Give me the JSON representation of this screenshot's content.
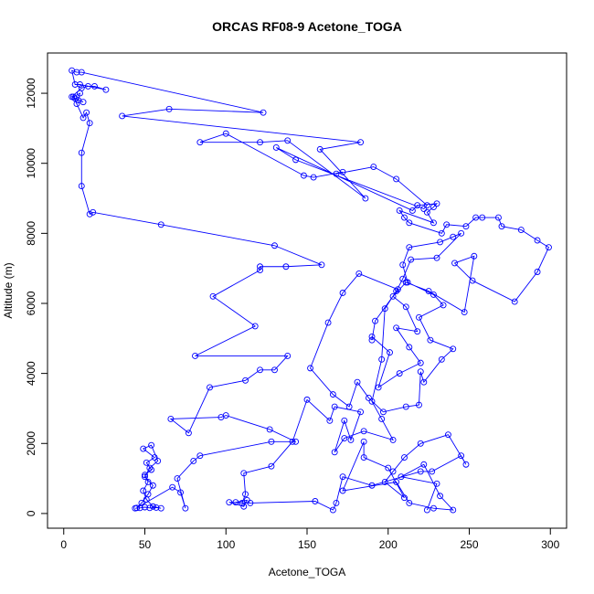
{
  "chart_data": {
    "type": "line",
    "title": "ORCAS RF08-9 Acetone_TOGA",
    "x_label": "Acetone_TOGA",
    "y_label": "Altitude (m)",
    "color": "#0000ff",
    "markers": "open-circle",
    "xlim": [
      -10,
      310
    ],
    "ylim": [
      -420,
      13150
    ],
    "xticks": [
      0,
      50,
      100,
      150,
      200,
      250,
      300
    ],
    "yticks": [
      0,
      2000,
      4000,
      6000,
      8000,
      10000,
      12000
    ],
    "x": [
      44,
      47,
      50,
      53,
      57,
      60,
      55,
      51,
      49,
      52,
      50,
      54,
      51,
      56,
      49,
      54,
      58,
      53,
      50,
      55,
      52,
      48,
      45,
      67,
      72,
      75,
      70,
      80,
      84,
      128,
      143,
      127,
      100,
      97,
      66,
      77,
      90,
      112,
      121,
      130,
      138,
      81,
      118,
      92,
      121,
      121,
      137,
      159,
      130,
      60,
      18,
      16,
      11,
      11,
      16,
      14,
      12,
      8,
      6,
      10,
      9,
      12,
      7,
      5,
      11,
      15,
      19,
      26,
      10,
      7,
      5,
      8,
      11,
      123,
      65,
      36,
      183,
      158,
      186,
      138,
      121,
      84,
      100,
      148,
      154,
      172,
      168,
      191,
      205,
      224,
      222,
      143,
      131,
      215,
      218,
      230,
      228,
      224,
      228,
      207,
      210,
      213,
      233,
      236,
      248,
      254,
      258,
      268,
      270,
      282,
      292,
      299,
      292,
      278,
      252,
      241,
      253,
      247,
      225,
      211,
      203,
      211,
      218,
      205,
      213,
      220,
      207,
      194,
      201,
      190,
      190,
      192,
      206,
      182,
      172,
      163,
      152,
      166,
      176,
      181,
      188,
      197,
      211,
      219,
      220,
      222,
      233,
      240,
      226,
      219,
      234,
      228,
      212,
      209,
      213,
      232,
      240,
      245,
      230,
      214,
      209,
      205,
      198,
      196,
      190,
      196,
      203,
      185,
      173,
      167,
      173,
      177,
      183,
      167,
      164,
      150,
      141,
      128,
      111,
      112,
      110,
      106,
      113,
      111,
      102,
      115,
      155,
      166,
      168,
      172,
      190,
      220,
      227,
      245,
      248,
      237,
      220,
      210,
      203,
      198,
      210,
      200,
      185,
      185,
      172,
      205,
      213,
      228,
      240,
      232,
      222,
      208,
      230,
      224
    ],
    "values": [
      150,
      160,
      180,
      160,
      170,
      150,
      200,
      400,
      650,
      900,
      1100,
      1250,
      1450,
      1600,
      1850,
      1950,
      1500,
      1300,
      1050,
      800,
      550,
      300,
      160,
      750,
      600,
      150,
      1000,
      1500,
      1650,
      2050,
      2050,
      2400,
      2800,
      2750,
      2700,
      2300,
      3600,
      3800,
      4100,
      4100,
      4500,
      4500,
      5350,
      6200,
      6950,
      7050,
      7050,
      7100,
      7650,
      8250,
      8600,
      8550,
      9350,
      10300,
      11150,
      11450,
      11300,
      11700,
      11900,
      12000,
      11800,
      11750,
      11850,
      11900,
      12150,
      12200,
      12200,
      12100,
      12250,
      12250,
      12650,
      12600,
      12600,
      11450,
      11550,
      11350,
      10600,
      10400,
      9000,
      10650,
      10600,
      10600,
      10850,
      9650,
      9600,
      9750,
      9700,
      9900,
      9550,
      8800,
      8700,
      10100,
      10450,
      8650,
      8800,
      8850,
      8750,
      8600,
      8300,
      8650,
      8450,
      8300,
      8000,
      8250,
      8200,
      8450,
      8450,
      8450,
      8200,
      8100,
      7800,
      7600,
      6900,
      6050,
      6650,
      7150,
      7350,
      5750,
      6350,
      6600,
      6200,
      5900,
      5200,
      5300,
      4750,
      4300,
      4000,
      3600,
      4600,
      5050,
      4950,
      5500,
      6400,
      6850,
      6300,
      5450,
      4150,
      3400,
      3050,
      3750,
      3300,
      2900,
      3050,
      3100,
      4050,
      3750,
      4400,
      4700,
      4950,
      5600,
      5950,
      6250,
      6600,
      7100,
      7600,
      7750,
      7900,
      8000,
      7300,
      7250,
      6700,
      6350,
      5850,
      4400,
      3200,
      2700,
      2100,
      2350,
      2150,
      1750,
      2650,
      2100,
      2900,
      3050,
      2650,
      3250,
      2050,
      1350,
      1150,
      550,
      300,
      320,
      380,
      200,
      320,
      300,
      350,
      100,
      300,
      1050,
      800,
      1200,
      1200,
      1650,
      1400,
      2250,
      2000,
      1600,
      1200,
      900,
      450,
      1300,
      1600,
      2050,
      650,
      900,
      300,
      150,
      100,
      500,
      1400,
      1050,
      850,
      100
    ]
  }
}
